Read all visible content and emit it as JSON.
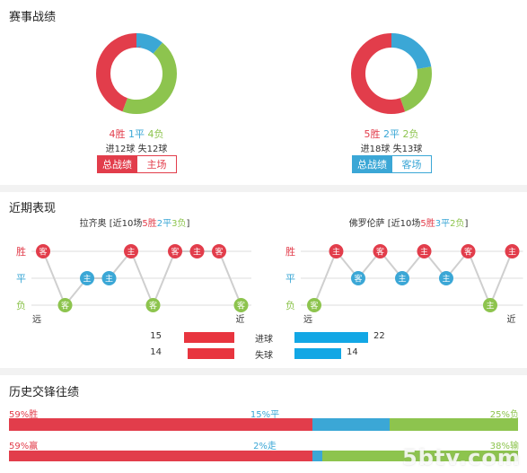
{
  "colors": {
    "win": "#e23d4b",
    "draw": "#3ba7d6",
    "loss": "#8dc44e",
    "goals_for": "#e8353f",
    "goals_against": "#12a7e5",
    "grid": "#dddddd"
  },
  "record": {
    "title": "赛事战绩",
    "left": {
      "wins": 4,
      "draws": 1,
      "losses": 4,
      "win_label": "4胜",
      "draw_label": "1平",
      "loss_label": "4负",
      "goals": "进12球",
      "conceded": "失12球",
      "tab_active": "总战绩",
      "tab_other": "主场"
    },
    "right": {
      "wins": 5,
      "draws": 2,
      "losses": 2,
      "win_label": "5胜",
      "draw_label": "2平",
      "loss_label": "2负",
      "goals": "进18球",
      "conceded": "失13球",
      "tab_active": "总战绩",
      "tab_other": "客场"
    }
  },
  "recent": {
    "title": "近期表现",
    "axis": {
      "win": "胜",
      "draw": "平",
      "loss": "负",
      "far": "远",
      "near": "近"
    },
    "left": {
      "team": "拉齐奥",
      "prefix": " [近10场",
      "wins_text": "5胜",
      "draws_text": "2平",
      "losses_text": "3负",
      "suffix": "]",
      "results": [
        "W",
        "L",
        "D",
        "D",
        "W",
        "L",
        "W",
        "W",
        "W",
        "L"
      ],
      "venues": [
        "客",
        "客",
        "主",
        "主",
        "主",
        "客",
        "客",
        "主",
        "客",
        "客"
      ]
    },
    "right": {
      "team": "佛罗伦萨",
      "prefix": " [近10场",
      "wins_text": "5胜",
      "draws_text": "3平",
      "losses_text": "2负",
      "suffix": "]",
      "results": [
        "L",
        "W",
        "D",
        "W",
        "D",
        "W",
        "D",
        "W",
        "L",
        "W"
      ],
      "venues": [
        "客",
        "主",
        "客",
        "客",
        "主",
        "主",
        "主",
        "客",
        "主",
        "主"
      ]
    },
    "stats": [
      {
        "label": "进球",
        "left": 15,
        "right": 22
      },
      {
        "label": "失球",
        "left": 14,
        "right": 14
      }
    ]
  },
  "history": {
    "title": "历史交锋往绩",
    "row1": {
      "left": "59%胜",
      "mid": "15%平",
      "right": "25%负",
      "a": 59,
      "b": 15,
      "c": 25
    },
    "row2": {
      "left": "59%赢",
      "mid": "2%走",
      "right": "38%输",
      "a": 59,
      "b": 2,
      "c": 38
    }
  },
  "watermark": "5btv.com"
}
